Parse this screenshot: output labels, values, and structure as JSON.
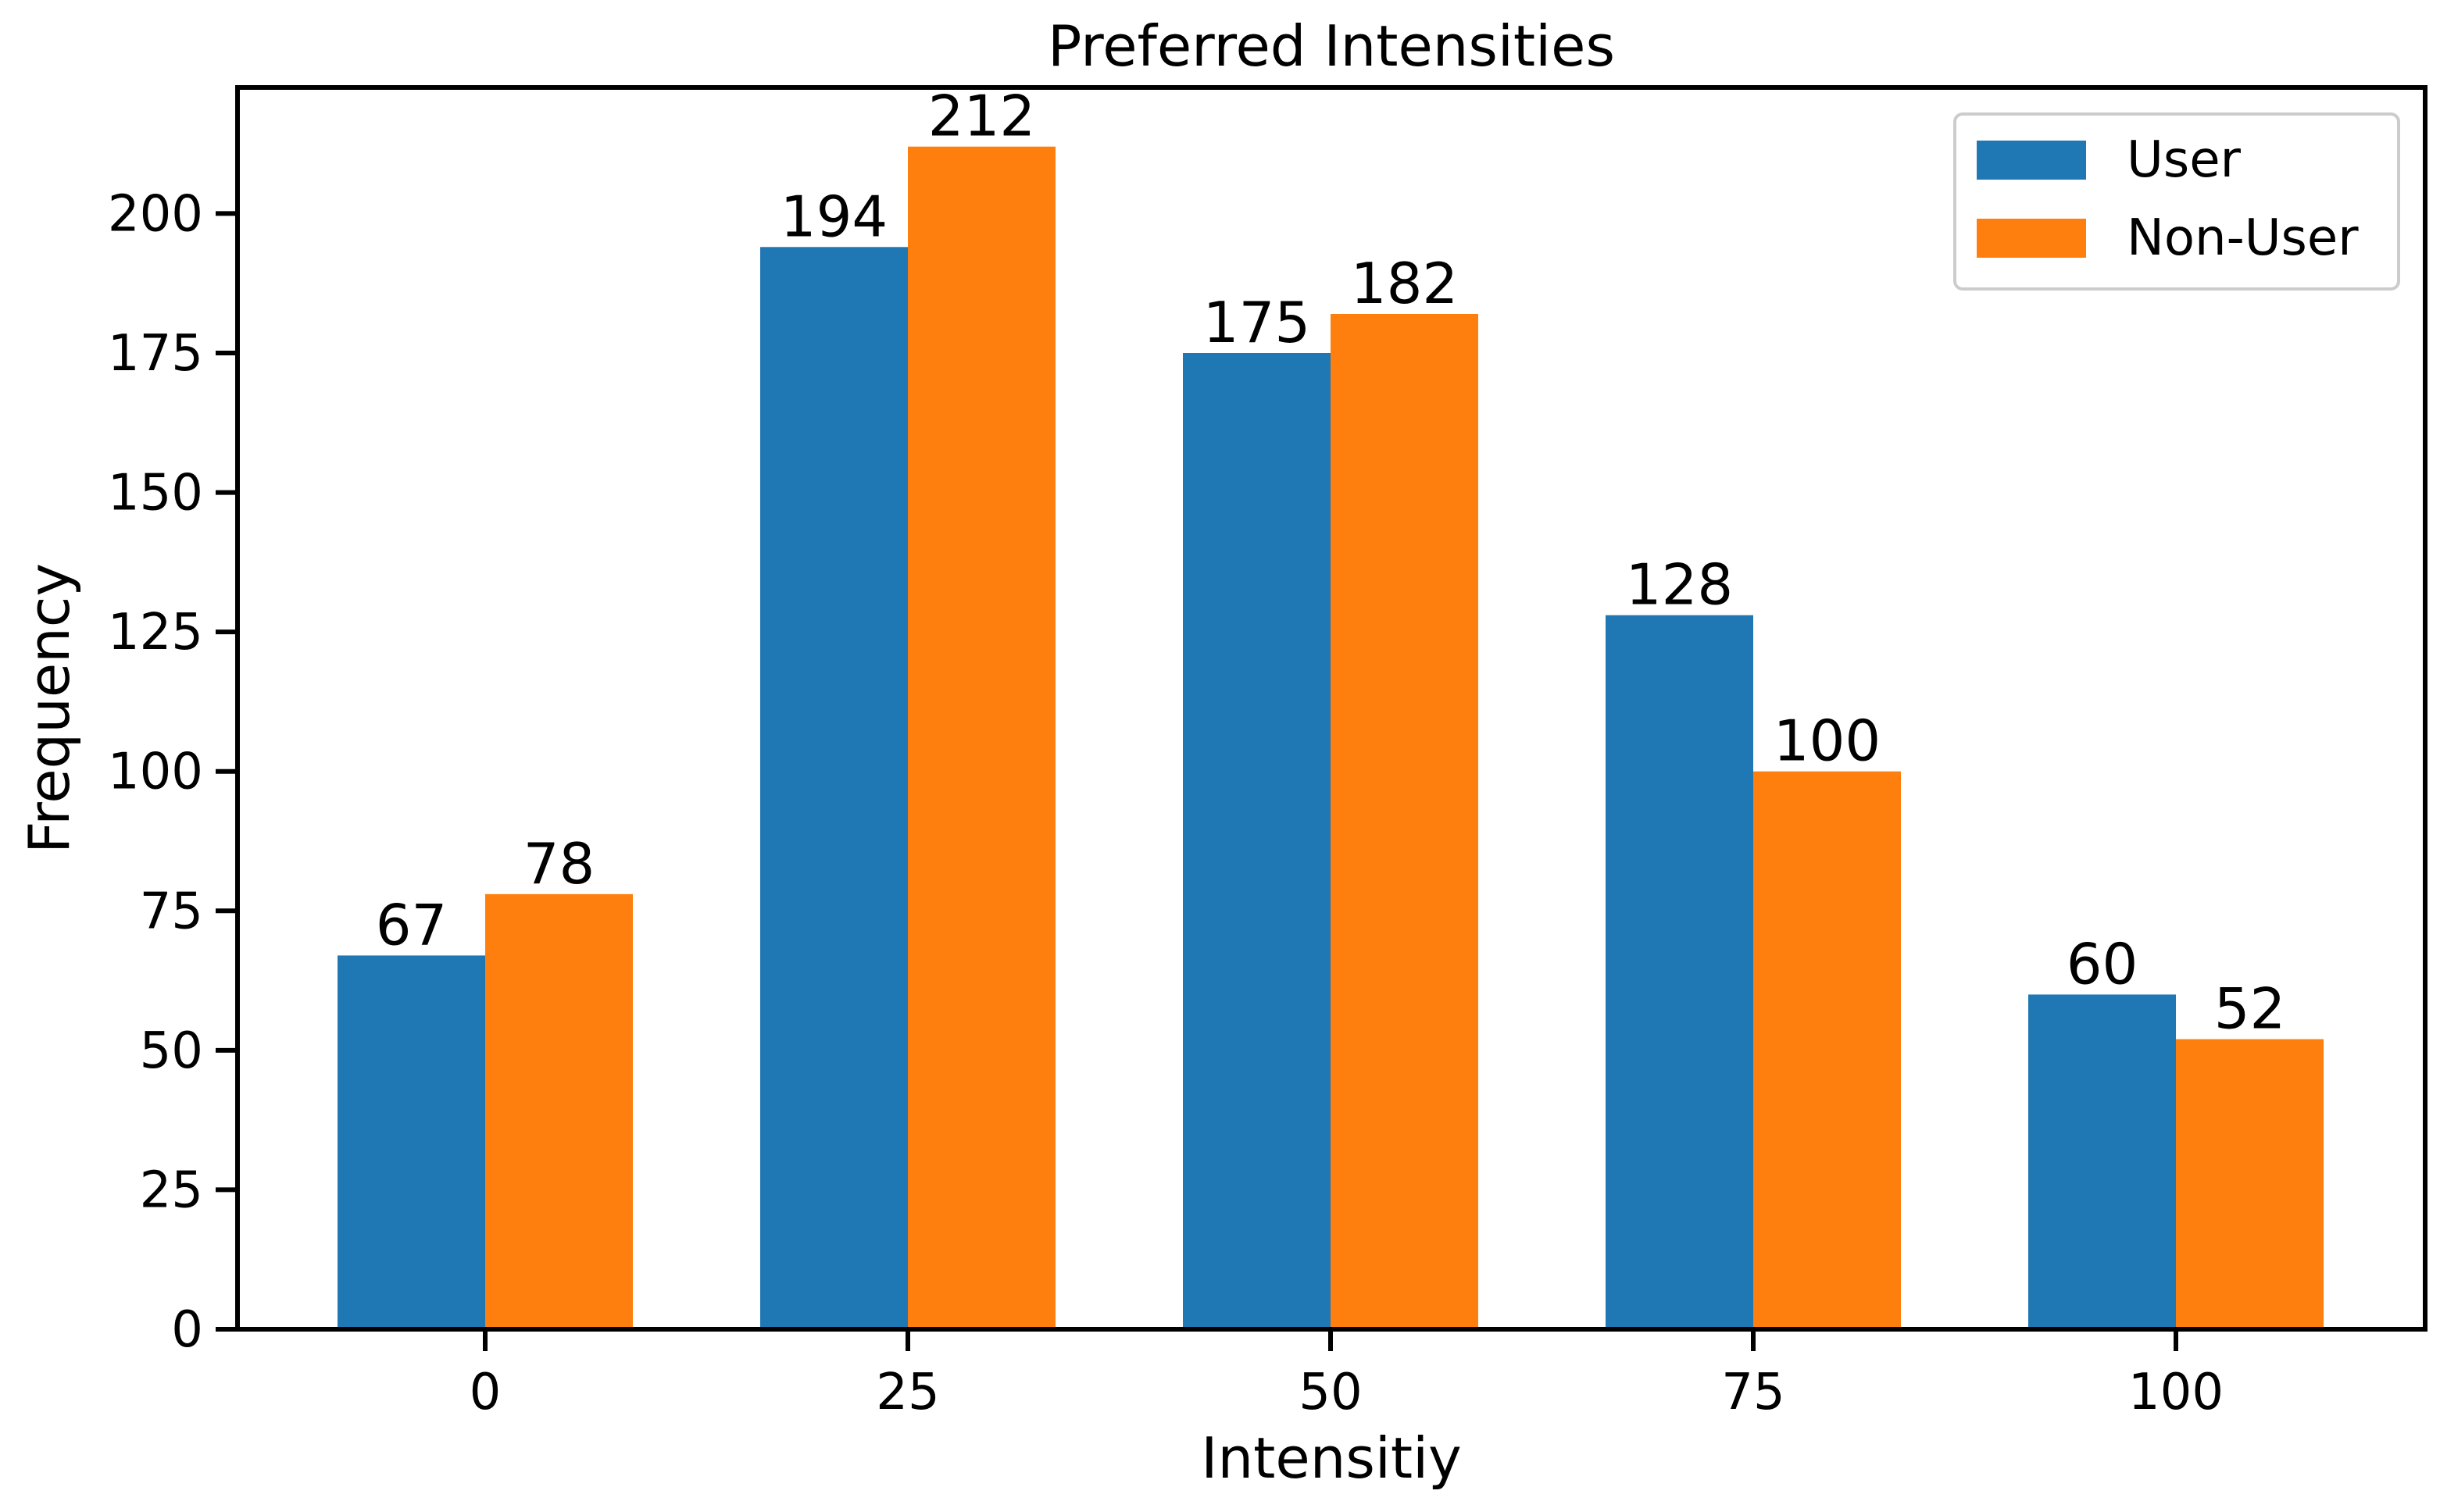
{
  "chart_data": {
    "type": "bar",
    "title": "Preferred Intensities",
    "xlabel": "Intensitiy",
    "ylabel": "Frequency",
    "categories": [
      "0",
      "25",
      "50",
      "75",
      "100"
    ],
    "yticks": [
      "0",
      "25",
      "50",
      "75",
      "100",
      "125",
      "150",
      "175",
      "200"
    ],
    "ylim": [
      0,
      222.6
    ],
    "grid": false,
    "legend_position": "top-right",
    "series": [
      {
        "name": "User",
        "color": "#1f77b4",
        "values": [
          67,
          194,
          175,
          128,
          60
        ]
      },
      {
        "name": "Non-User",
        "color": "#ff7f0e",
        "values": [
          78,
          212,
          182,
          100,
          52
        ]
      }
    ]
  }
}
